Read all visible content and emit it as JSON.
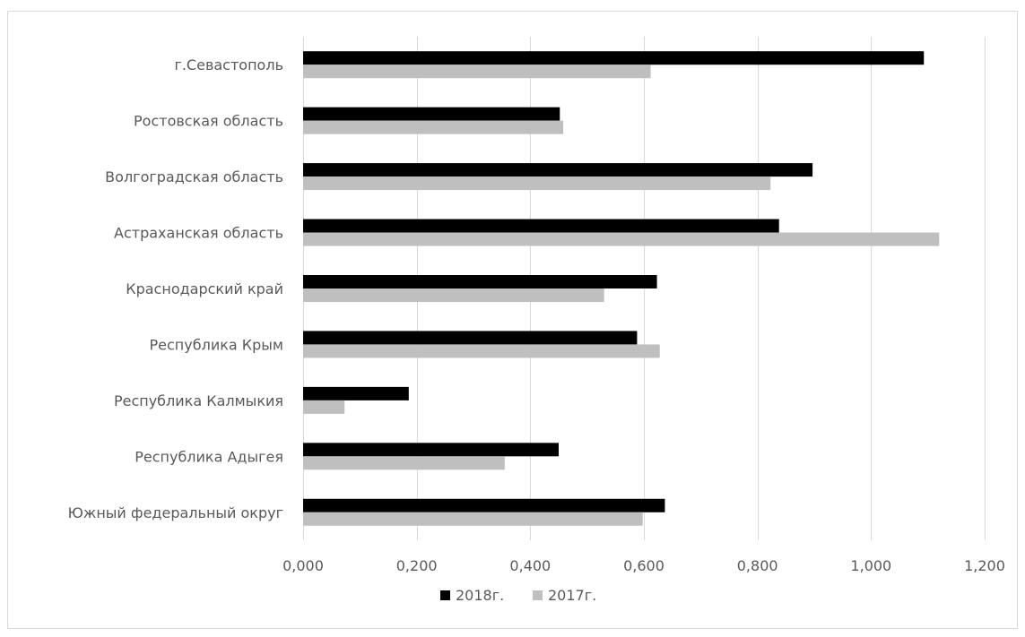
{
  "chart_data": {
    "type": "bar",
    "orientation": "horizontal",
    "categories": [
      "г.Севастополь",
      "Ростовская область",
      "Волгоградская область",
      "Астраханская область",
      "Краснодарский край",
      "Республика Крым",
      "Республика Калмыкия",
      "Республика Адыгея",
      "Южный федеральный округ"
    ],
    "series": [
      {
        "name": "2018г.",
        "color": "#000000",
        "values": [
          1.093,
          0.452,
          0.897,
          0.838,
          0.623,
          0.588,
          0.186,
          0.45,
          0.637
        ]
      },
      {
        "name": "2017г.",
        "color": "#bfbfbf",
        "values": [
          0.612,
          0.458,
          0.823,
          1.12,
          0.53,
          0.628,
          0.073,
          0.355,
          0.598
        ]
      }
    ],
    "xlim": [
      0,
      1.2
    ],
    "x_ticks": [
      0,
      0.2,
      0.4,
      0.6,
      0.8,
      1.0,
      1.2
    ],
    "x_tick_labels": [
      "0,000",
      "0,200",
      "0,400",
      "0,600",
      "0,800",
      "1,000",
      "1,200"
    ],
    "title": "",
    "xlabel": "",
    "ylabel": "",
    "grid": "vertical",
    "legend_position": "bottom"
  }
}
